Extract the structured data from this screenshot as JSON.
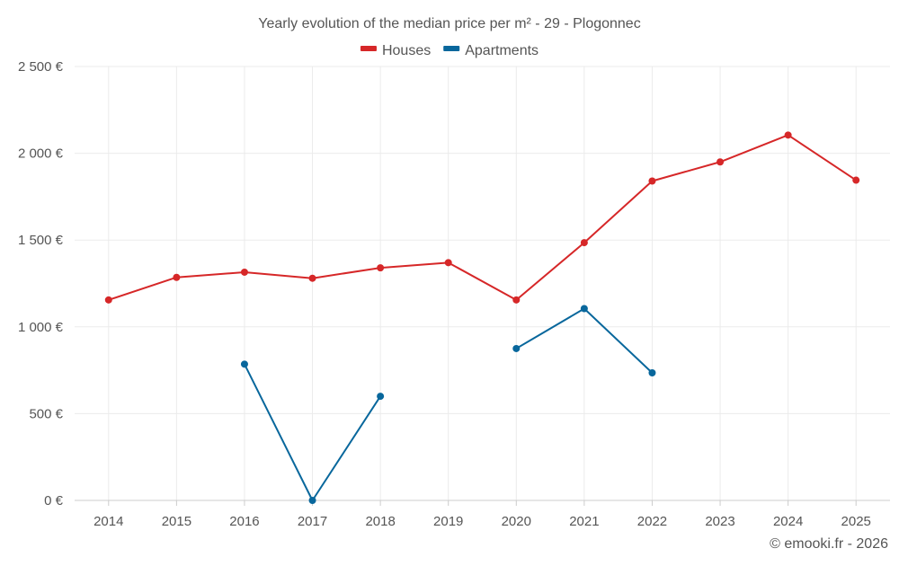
{
  "chart_data": {
    "type": "line",
    "title": "Yearly evolution of the median price per m² - 29 - Plogonnec",
    "categories": [
      "2014",
      "2015",
      "2016",
      "2017",
      "2018",
      "2019",
      "2020",
      "2021",
      "2022",
      "2023",
      "2024",
      "2025"
    ],
    "ylim": [
      0,
      2500
    ],
    "yticks": [
      0,
      500,
      1000,
      1500,
      2000,
      2500
    ],
    "ytick_labels": [
      "0 €",
      "500 €",
      "1 000 €",
      "1 500 €",
      "2 000 €",
      "2 500 €"
    ],
    "grid": true,
    "legend_position": "top-center",
    "series": [
      {
        "name": "Houses",
        "color": "#d62728",
        "values": [
          1155,
          1285,
          1315,
          1280,
          1340,
          1370,
          1155,
          1485,
          1840,
          1950,
          2105,
          1845
        ]
      },
      {
        "name": "Apartments",
        "color": "#08679c",
        "values": [
          null,
          null,
          785,
          0,
          600,
          null,
          875,
          1105,
          735,
          null,
          null,
          null
        ]
      }
    ]
  },
  "credit": "© emooki.fr - 2026"
}
